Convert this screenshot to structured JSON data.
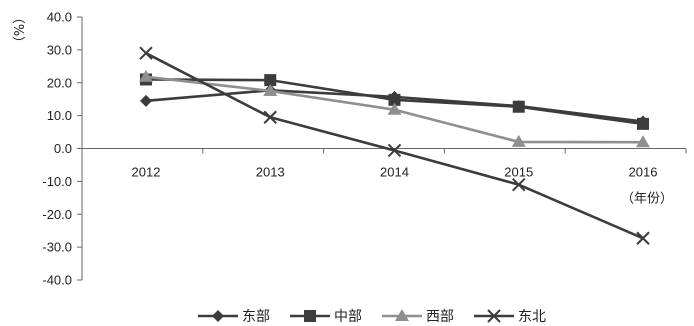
{
  "chart_data": {
    "type": "line",
    "categories": [
      "2012",
      "2013",
      "2014",
      "2015",
      "2016"
    ],
    "x_unit_label": "（年份）",
    "y_unit_label": "（%）",
    "ylim": [
      -40,
      40
    ],
    "yticks": [
      "40.0",
      "30.0",
      "20.0",
      "10.0",
      "0.0",
      "-10.0",
      "-20.0",
      "-30.0",
      "-40.0"
    ],
    "grid": false,
    "legend_position": "bottom",
    "series": [
      {
        "name": "东部",
        "marker": "diamond",
        "color": "#3c3c3c",
        "values": [
          14.5,
          17.7,
          15.7,
          12.9,
          8.2
        ]
      },
      {
        "name": "中部",
        "marker": "square",
        "color": "#3c3c3c",
        "values": [
          21.0,
          20.8,
          14.8,
          12.7,
          7.5
        ]
      },
      {
        "name": "西部",
        "marker": "triangle",
        "color": "#8f8f8f",
        "values": [
          21.8,
          17.5,
          11.8,
          2.0,
          1.9
        ]
      },
      {
        "name": "东北",
        "marker": "x",
        "color": "#3c3c3c",
        "values": [
          29.0,
          9.5,
          -0.6,
          -11.0,
          -27.3
        ]
      }
    ]
  }
}
